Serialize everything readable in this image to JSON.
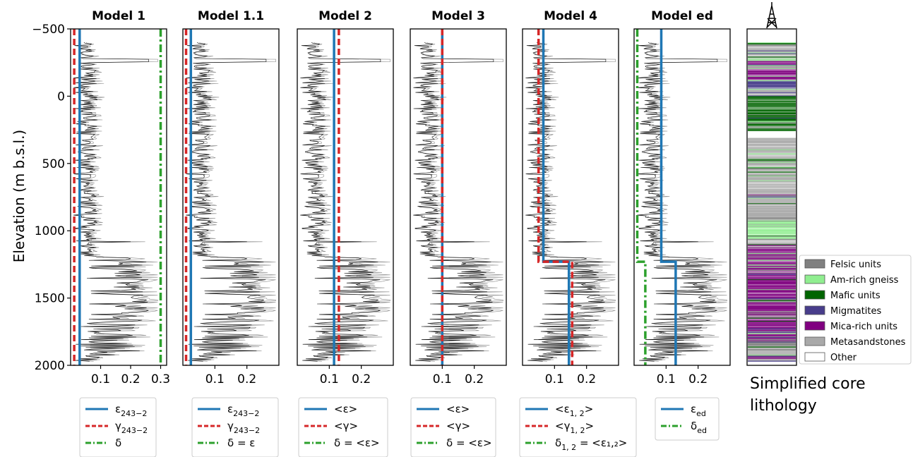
{
  "colors": {
    "epsilon": "#1f77b4",
    "gamma": "#d62728",
    "delta": "#2ca02c",
    "log_black": "#000000",
    "log_gray": "#8c8c8c"
  },
  "chart_data": {
    "type": "line",
    "ylabel": "Elevation (m b.s.l.)",
    "ylim": [
      2000,
      -500
    ],
    "yticks": [
      -500,
      0,
      500,
      1000,
      1500,
      2000
    ],
    "ytick_labels": [
      "−500",
      "0",
      "500",
      "1000",
      "1500",
      "2000"
    ],
    "log_depth_range": [
      -400,
      1970
    ],
    "panels": [
      {
        "title": "Model 1",
        "xlim": [
          0,
          0.32
        ],
        "xticks": [
          0.1,
          0.2,
          0.3
        ],
        "xtick_labels": [
          "0.1",
          "0.2",
          "0.3"
        ],
        "series": [
          {
            "key": "eps",
            "name": "ε",
            "sub": "243−2",
            "style": "solid",
            "color": "#1f77b4",
            "x": [
              0.03,
              0.03
            ],
            "y": [
              -500,
              2000
            ]
          },
          {
            "key": "gam",
            "name": "γ",
            "sub": "243−2",
            "style": "dashed",
            "color": "#d62728",
            "x": [
              0.012,
              0.012
            ],
            "y": [
              -500,
              2000
            ]
          },
          {
            "key": "del",
            "name": "δ",
            "sub": "",
            "style": "dashdot",
            "color": "#2ca02c",
            "x": [
              0.3,
              0.3
            ],
            "y": [
              -500,
              2000
            ]
          }
        ]
      },
      {
        "title": "Model 1.1",
        "xlim": [
          0,
          0.3
        ],
        "xticks": [
          0.1,
          0.2
        ],
        "xtick_labels": [
          "0.1",
          "0.2"
        ],
        "series": [
          {
            "key": "eps",
            "name": "ε",
            "sub": "243−2",
            "style": "solid",
            "color": "#1f77b4",
            "x": [
              0.025,
              0.025
            ],
            "y": [
              -500,
              2000
            ]
          },
          {
            "key": "gam",
            "name": "γ",
            "sub": "243−2",
            "style": "dashed",
            "color": "#d62728",
            "x": [
              0.01,
              0.01
            ],
            "y": [
              -500,
              2000
            ]
          },
          {
            "key": "del",
            "name": "δ = ε",
            "sub": "",
            "style": "dashdot",
            "color": "#2ca02c",
            "x": [],
            "y": []
          }
        ]
      },
      {
        "title": "Model 2",
        "xlim": [
          0,
          0.3
        ],
        "xticks": [
          0.1,
          0.2
        ],
        "xtick_labels": [
          "0.1",
          "0.2"
        ],
        "series": [
          {
            "key": "eps",
            "name": "<ε>",
            "sub": "",
            "style": "solid",
            "color": "#1f77b4",
            "x": [
              0.115,
              0.115
            ],
            "y": [
              -500,
              2000
            ]
          },
          {
            "key": "gam",
            "name": "<γ>",
            "sub": "",
            "style": "dashed",
            "color": "#d62728",
            "x": [
              0.13,
              0.13
            ],
            "y": [
              -500,
              2000
            ]
          },
          {
            "key": "del",
            "name": "δ = <ε>",
            "sub": "",
            "style": "dashdot",
            "color": "#2ca02c",
            "x": [],
            "y": []
          }
        ]
      },
      {
        "title": "Model 3",
        "xlim": [
          0,
          0.3
        ],
        "xticks": [
          0.1,
          0.2
        ],
        "xtick_labels": [
          "0.1",
          "0.2"
        ],
        "series": [
          {
            "key": "eps",
            "name": "<ε>",
            "sub": "",
            "style": "solid",
            "color": "#1f77b4",
            "x": [
              0.1,
              0.1
            ],
            "y": [
              -500,
              2000
            ]
          },
          {
            "key": "gam",
            "name": "<γ>",
            "sub": "",
            "style": "dashed",
            "color": "#d62728",
            "x": [
              0.1,
              0.1
            ],
            "y": [
              -500,
              2000
            ]
          },
          {
            "key": "del",
            "name": "δ = <ε>",
            "sub": "",
            "style": "dashdot",
            "color": "#2ca02c",
            "x": [],
            "y": []
          }
        ]
      },
      {
        "title": "Model 4",
        "xlim": [
          0,
          0.3
        ],
        "xticks": [
          0.1,
          0.2
        ],
        "xtick_labels": [
          "0.1",
          "0.2"
        ],
        "series": [
          {
            "key": "eps",
            "name": "<ε",
            "sub": "1, 2",
            "suffix": ">",
            "style": "solid",
            "color": "#1f77b4",
            "x": [
              0.065,
              0.065,
              0.145,
              0.145
            ],
            "y": [
              -500,
              1230,
              1230,
              2000
            ]
          },
          {
            "key": "gam",
            "name": "<γ",
            "sub": "1, 2",
            "suffix": ">",
            "style": "dashed",
            "color": "#d62728",
            "x": [
              0.05,
              0.05,
              0.155,
              0.155
            ],
            "y": [
              -500,
              1230,
              1230,
              2000
            ]
          },
          {
            "key": "del",
            "name": "δ",
            "sub": "1, 2",
            "suffix": " = <ε₁,₂>",
            "style": "dashdot",
            "color": "#2ca02c",
            "x": [],
            "y": []
          }
        ]
      },
      {
        "title": "Model ed",
        "xlim": [
          0,
          0.3
        ],
        "xticks": [
          0.1,
          0.2
        ],
        "xtick_labels": [
          "0.1",
          "0.2"
        ],
        "series": [
          {
            "key": "eps",
            "name": "ε",
            "sub": "ed",
            "style": "solid",
            "color": "#1f77b4",
            "x": [
              0.085,
              0.085,
              0.13,
              0.13
            ],
            "y": [
              -500,
              1230,
              1230,
              2000
            ]
          },
          {
            "key": "del",
            "name": "δ",
            "sub": "ed",
            "style": "dashdot",
            "color": "#2ca02c",
            "x": [
              0.01,
              0.01,
              0.035,
              0.035
            ],
            "y": [
              -500,
              1230,
              1230,
              2000
            ]
          }
        ]
      }
    ],
    "lithology": {
      "caption_lines": [
        "Simplified core",
        "lithology"
      ],
      "legend": [
        {
          "label": "Felsic units",
          "color": "#808080"
        },
        {
          "label": "Am-rich gneiss",
          "color": "#90ee90"
        },
        {
          "label": "Mafic units",
          "color": "#006400"
        },
        {
          "label": "Migmatites",
          "color": "#483d8b"
        },
        {
          "label": "Mica-rich units",
          "color": "#800080"
        },
        {
          "label": "Metasandstones",
          "color": "#a9a9a9"
        },
        {
          "label": "Other",
          "color": "#ffffff"
        }
      ],
      "intervals": [
        {
          "from": -400,
          "to": -260,
          "unit": "Metasandstones"
        },
        {
          "from": -260,
          "to": -120,
          "unit": "Mica-rich units"
        },
        {
          "from": -120,
          "to": -50,
          "unit": "Migmatites"
        },
        {
          "from": -50,
          "to": 0,
          "unit": "Metasandstones"
        },
        {
          "from": 0,
          "to": 260,
          "unit": "Mafic units"
        },
        {
          "from": 260,
          "to": 310,
          "unit": "Other"
        },
        {
          "from": 310,
          "to": 920,
          "unit": "Metasandstones"
        },
        {
          "from": 920,
          "to": 1060,
          "unit": "Am-rich gneiss"
        },
        {
          "from": 1060,
          "to": 1130,
          "unit": "Metasandstones"
        },
        {
          "from": 1130,
          "to": 1480,
          "unit": "Mica-rich units"
        },
        {
          "from": 1480,
          "to": 1820,
          "unit": "Mica-rich units"
        },
        {
          "from": 1820,
          "to": 1970,
          "unit": "Felsic units"
        }
      ]
    }
  }
}
